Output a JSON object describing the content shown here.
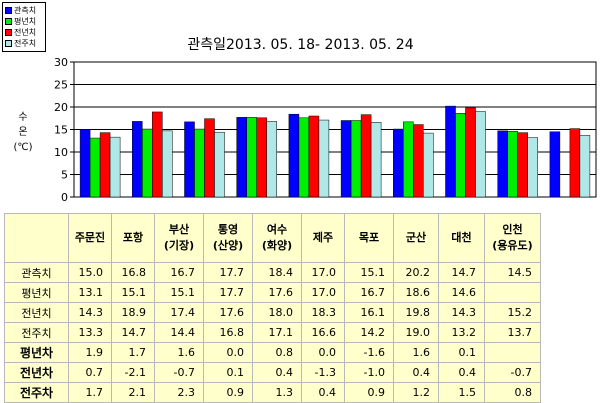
{
  "chart_data": {
    "type": "bar",
    "title": "관측일2013. 05. 18-  2013. 05. 24",
    "ylabel": "수온 (℃)",
    "ylabel_lines": [
      "수",
      "온",
      "(℃)"
    ],
    "ylim": [
      0,
      30
    ],
    "yticks": [
      "0",
      "5",
      "10",
      "15",
      "20",
      "25",
      "30"
    ],
    "grid": true,
    "legend_position": "top-left",
    "categories": [
      "주문진",
      "포항",
      "부산 (기장)",
      "통영 (산양)",
      "여수 (화양)",
      "제주",
      "목포",
      "군산",
      "대천",
      "인천 (용유도)"
    ],
    "category_lines": [
      [
        "주문진"
      ],
      [
        "포항"
      ],
      [
        "부산",
        "(기장)"
      ],
      [
        "통영",
        "(산양)"
      ],
      [
        "여수",
        "(화양)"
      ],
      [
        "제주"
      ],
      [
        "목포"
      ],
      [
        "군산"
      ],
      [
        "대천"
      ],
      [
        "인천",
        "(용유도)"
      ]
    ],
    "series": [
      {
        "name": "관측치",
        "color": "#0000ff",
        "values": [
          15.0,
          16.8,
          16.7,
          17.7,
          18.4,
          17.0,
          15.1,
          20.2,
          14.7,
          14.5
        ]
      },
      {
        "name": "평년치",
        "color": "#00ee00",
        "values": [
          13.1,
          15.1,
          15.1,
          17.7,
          17.6,
          17.0,
          16.7,
          18.6,
          14.6,
          null
        ]
      },
      {
        "name": "전년치",
        "color": "#ff0000",
        "values": [
          14.3,
          18.9,
          17.4,
          17.6,
          18.0,
          18.3,
          16.1,
          19.8,
          14.3,
          15.2
        ]
      },
      {
        "name": "전주치",
        "color": "#b0e8e8",
        "values": [
          13.3,
          14.7,
          14.4,
          16.8,
          17.1,
          16.6,
          14.2,
          19.0,
          13.2,
          13.7
        ]
      }
    ]
  },
  "table": {
    "rows": [
      {
        "label": "관측치",
        "cells": [
          "15.0",
          "16.8",
          "16.7",
          "17.7",
          "18.4",
          "17.0",
          "15.1",
          "20.2",
          "14.7",
          "14.5"
        ]
      },
      {
        "label": "평년치",
        "cells": [
          "13.1",
          "15.1",
          "15.1",
          "17.7",
          "17.6",
          "17.0",
          "16.7",
          "18.6",
          "14.6",
          ""
        ]
      },
      {
        "label": "전년치",
        "cells": [
          "14.3",
          "18.9",
          "17.4",
          "17.6",
          "18.0",
          "18.3",
          "16.1",
          "19.8",
          "14.3",
          "15.2"
        ]
      },
      {
        "label": "전주치",
        "cells": [
          "13.3",
          "14.7",
          "14.4",
          "16.8",
          "17.1",
          "16.6",
          "14.2",
          "19.0",
          "13.2",
          "13.7"
        ]
      },
      {
        "label": "평년차",
        "cells": [
          "1.9",
          "1.7",
          "1.6",
          "0.0",
          "0.8",
          "0.0",
          "-1.6",
          "1.6",
          "0.1",
          ""
        ]
      },
      {
        "label": "전년차",
        "cells": [
          "0.7",
          "-2.1",
          "-0.7",
          "0.1",
          "0.4",
          "-1.3",
          "-1.0",
          "0.4",
          "0.4",
          "-0.7"
        ]
      },
      {
        "label": "전주차",
        "cells": [
          "1.7",
          "2.1",
          "2.3",
          "0.9",
          "1.3",
          "0.4",
          "0.9",
          "1.2",
          "1.5",
          "0.8"
        ]
      }
    ]
  }
}
